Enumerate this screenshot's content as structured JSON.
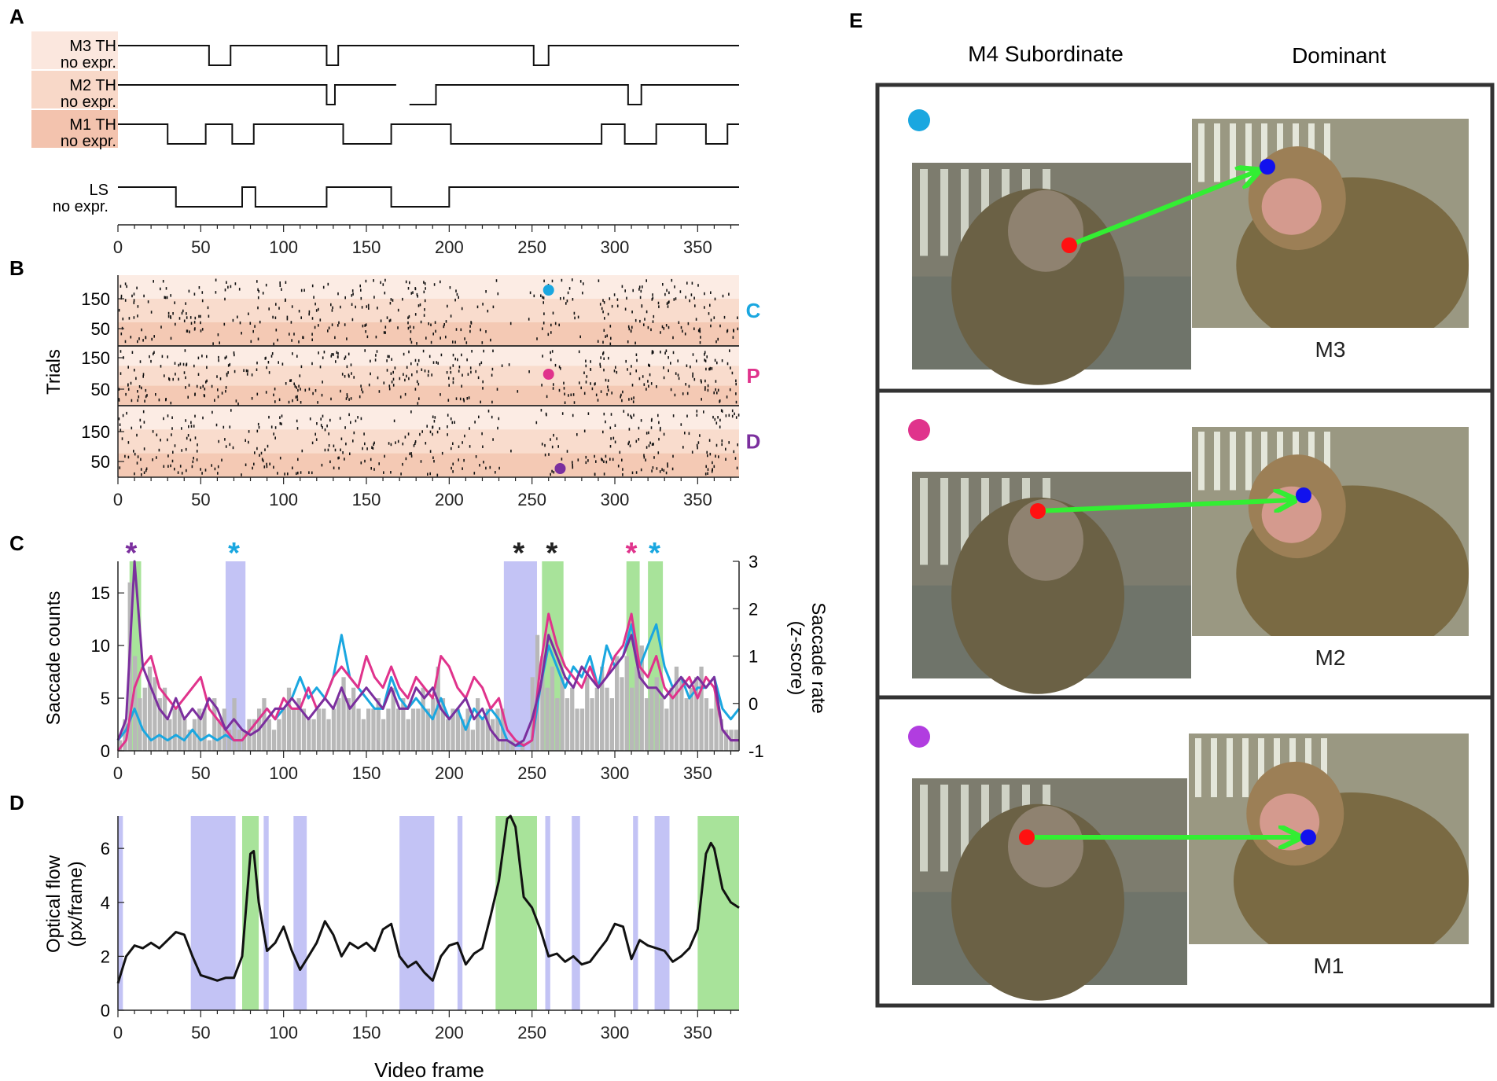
{
  "panel_letters": {
    "a": "A",
    "b": "B",
    "c": "C",
    "d": "D",
    "e": "E"
  },
  "colors": {
    "cyan": "#1aa7e0",
    "magenta": "#e0338c",
    "purple": "#7b2f9e",
    "green_band": "#a8e39a",
    "blue_band": "#c3c3f5",
    "hist_grey": "#b8b8b8",
    "arrow_green": "#33ee33",
    "red_dot": "#ff1111",
    "blue_dot": "#1111ee",
    "trace_black": "#111111"
  },
  "chart_data": [
    {
      "id": "A",
      "type": "line",
      "title": "",
      "xlabel": "",
      "ylabel": "",
      "xlim": [
        0,
        375
      ],
      "xticks": [
        0,
        50,
        100,
        150,
        200,
        250,
        300,
        350
      ],
      "rows": [
        {
          "name": "M3",
          "label_top": "M3 TH",
          "label_bottom": "no expr.",
          "low_segments": [
            [
              55,
              68
            ],
            [
              126,
              133
            ],
            [
              251,
              260
            ]
          ],
          "gaps": []
        },
        {
          "name": "M2",
          "label_top": "M2 TH",
          "label_bottom": "no expr.",
          "low_segments": [
            [
              126,
              131
            ],
            [
              176,
              192
            ],
            [
              308,
              316
            ]
          ],
          "gaps": [
            [
              168,
              176
            ]
          ]
        },
        {
          "name": "M1",
          "label_top": "M1 TH",
          "label_bottom": "no expr.",
          "low_segments": [
            [
              30,
              53
            ],
            [
              69,
              82
            ],
            [
              136,
              165
            ],
            [
              201,
              292
            ],
            [
              306,
              325
            ],
            [
              355,
              368
            ]
          ],
          "gaps": []
        },
        {
          "name": "LS",
          "label_top": "LS",
          "label_bottom": "no expr.",
          "low_segments": [
            [
              35,
              75
            ],
            [
              83,
              126
            ],
            [
              165,
              200
            ]
          ],
          "gaps": []
        }
      ]
    },
    {
      "id": "B",
      "type": "scatter",
      "ylabel": "Trials",
      "xlim": [
        0,
        375
      ],
      "xticks": [
        0,
        50,
        100,
        150,
        200,
        250,
        300,
        350
      ],
      "blocks": [
        {
          "label": "C",
          "color": "#1aa7e0",
          "yticks": [
            150,
            50
          ],
          "marker_frame": 260
        },
        {
          "label": "P",
          "color": "#e0338c",
          "yticks": [
            150,
            50
          ],
          "marker_frame": 260
        },
        {
          "label": "D",
          "color": "#7b2f9e",
          "yticks": [
            150,
            50
          ],
          "marker_frame": 267
        }
      ]
    },
    {
      "id": "C",
      "type": "line",
      "ylabel": "Saccade counts",
      "ylabel_right_line1": "Saccade rate",
      "ylabel_right_line2": "(z-score)",
      "xlim": [
        0,
        375
      ],
      "ylim": [
        0,
        18
      ],
      "ylim_right": [
        -1,
        3
      ],
      "xticks": [
        0,
        50,
        100,
        150,
        200,
        250,
        300,
        350
      ],
      "yticks": [
        0,
        5,
        10,
        15
      ],
      "yticks_right": [
        -1,
        0,
        1,
        2,
        3
      ],
      "green_bands": [
        [
          7,
          14
        ],
        [
          256,
          269
        ],
        [
          307,
          315
        ],
        [
          320,
          329
        ]
      ],
      "blue_bands": [
        [
          65,
          77
        ],
        [
          233,
          253
        ]
      ],
      "stars": [
        {
          "frame": 8,
          "text": "*",
          "color": "#7b2f9e"
        },
        {
          "frame": 70,
          "text": "*",
          "color": "#1aa7e0"
        },
        {
          "frame": 242,
          "text": "*",
          "color": "#222222"
        },
        {
          "frame": 262,
          "text": "*",
          "color": "#222222"
        },
        {
          "frame": 310,
          "text": "*",
          "color": "#e0338c"
        },
        {
          "frame": 324,
          "text": "*",
          "color": "#1aa7e0"
        }
      ],
      "series": [
        {
          "name": "C",
          "color": "#1aa7e0",
          "x": [
            0,
            5,
            10,
            15,
            20,
            25,
            30,
            35,
            40,
            45,
            50,
            55,
            60,
            65,
            70,
            75,
            80,
            85,
            90,
            95,
            100,
            105,
            110,
            115,
            120,
            125,
            130,
            135,
            140,
            145,
            150,
            155,
            160,
            165,
            170,
            175,
            180,
            185,
            190,
            195,
            200,
            205,
            210,
            215,
            220,
            225,
            230,
            235,
            240,
            245,
            250,
            255,
            260,
            265,
            270,
            275,
            280,
            285,
            290,
            295,
            300,
            305,
            310,
            315,
            320,
            325,
            330,
            335,
            340,
            345,
            350,
            355,
            360,
            365,
            370,
            375
          ],
          "y": [
            1,
            2,
            4,
            2,
            1,
            1.5,
            1,
            1.5,
            1,
            2,
            1,
            1.5,
            1,
            1.5,
            1,
            1,
            2,
            3,
            4,
            3,
            4,
            5,
            7,
            5,
            6,
            5,
            7,
            11,
            7,
            6,
            5,
            4,
            4,
            7,
            5,
            4,
            5,
            4,
            3,
            5,
            3,
            4,
            2,
            4,
            3,
            4,
            3,
            1,
            0.5,
            0.5,
            1,
            6,
            10,
            8,
            6,
            8,
            7,
            9,
            6,
            10,
            8,
            9,
            12,
            8,
            10,
            12,
            8,
            6,
            7,
            5,
            6,
            6,
            7,
            4,
            3,
            4
          ]
        },
        {
          "name": "P",
          "color": "#e0338c",
          "x": [
            0,
            5,
            10,
            15,
            20,
            25,
            30,
            35,
            40,
            45,
            50,
            55,
            60,
            65,
            70,
            75,
            80,
            85,
            90,
            95,
            100,
            105,
            110,
            115,
            120,
            125,
            130,
            135,
            140,
            145,
            150,
            155,
            160,
            165,
            170,
            175,
            180,
            185,
            190,
            195,
            200,
            205,
            210,
            215,
            220,
            225,
            230,
            235,
            240,
            245,
            250,
            255,
            260,
            265,
            270,
            275,
            280,
            285,
            290,
            295,
            300,
            305,
            310,
            315,
            320,
            325,
            330,
            335,
            340,
            345,
            350,
            355,
            360,
            365,
            370,
            375
          ],
          "y": [
            0,
            1,
            6,
            8,
            9,
            6,
            5,
            4,
            5,
            6,
            7,
            4,
            3,
            2,
            1,
            1,
            2,
            3,
            4,
            3,
            5,
            4,
            4,
            6,
            4,
            5,
            7,
            8,
            7,
            6,
            9,
            7,
            6,
            8,
            6,
            5,
            7,
            6,
            5,
            9,
            8,
            6,
            5,
            7,
            6,
            4,
            5,
            2,
            1,
            0.5,
            1,
            8,
            13,
            10,
            8,
            7,
            6,
            8,
            6,
            7,
            9,
            10,
            13,
            8,
            7,
            9,
            6,
            5,
            6,
            7,
            5,
            7,
            6,
            2,
            1,
            1
          ]
        },
        {
          "name": "D",
          "color": "#7b2f9e",
          "x": [
            0,
            5,
            10,
            15,
            20,
            25,
            30,
            35,
            40,
            45,
            50,
            55,
            60,
            65,
            70,
            75,
            80,
            85,
            90,
            95,
            100,
            105,
            110,
            115,
            120,
            125,
            130,
            135,
            140,
            145,
            150,
            155,
            160,
            165,
            170,
            175,
            180,
            185,
            190,
            195,
            200,
            205,
            210,
            215,
            220,
            225,
            230,
            235,
            240,
            245,
            250,
            255,
            260,
            265,
            270,
            275,
            280,
            285,
            290,
            295,
            300,
            305,
            310,
            315,
            320,
            325,
            330,
            335,
            340,
            345,
            350,
            355,
            360,
            365,
            370,
            375
          ],
          "y": [
            1,
            3,
            18,
            8,
            6,
            4,
            3,
            5,
            3,
            4,
            3,
            5,
            4,
            2,
            3,
            2,
            1.5,
            2,
            3,
            4,
            4,
            5,
            4,
            3,
            4,
            5,
            4,
            6,
            4,
            5,
            6,
            5,
            4,
            6,
            4,
            4,
            6,
            5,
            6,
            4,
            3,
            4,
            5,
            3,
            4,
            2,
            1,
            1,
            0.5,
            1,
            3,
            6,
            11,
            9,
            7,
            6,
            8,
            7,
            6,
            7,
            8,
            9,
            11,
            7,
            6,
            6,
            5,
            6,
            7,
            6,
            7,
            6,
            7,
            2,
            1,
            1
          ]
        }
      ],
      "histogram": {
        "name": "Saccade counts",
        "color": "#b8b8b8",
        "bin_start": 0,
        "bin_width": 3,
        "counts": [
          1,
          3,
          16,
          9,
          5,
          6,
          8,
          7,
          5,
          6,
          3,
          4,
          4,
          3,
          2,
          3,
          4,
          4,
          1,
          5,
          3,
          4,
          2,
          5,
          2,
          2,
          3,
          3,
          4,
          5,
          3,
          2,
          3,
          4,
          6,
          4,
          5,
          4,
          3,
          3,
          4,
          4,
          3,
          4,
          5,
          7,
          5,
          6,
          4,
          3,
          4,
          4,
          5,
          3,
          4,
          6,
          4,
          5,
          3,
          4,
          4,
          6,
          4,
          5,
          8,
          5,
          3,
          4,
          4,
          3,
          4,
          2,
          5,
          3,
          4,
          3,
          4,
          4,
          1,
          1,
          0,
          1,
          0,
          7,
          11,
          9,
          6,
          8,
          5,
          7,
          5,
          6,
          4,
          4,
          7,
          5,
          6,
          8,
          6,
          5,
          9,
          7,
          9,
          6,
          8,
          10,
          5,
          6,
          7,
          5,
          4,
          6,
          8,
          7,
          5,
          6,
          7,
          8,
          5,
          4,
          6,
          3,
          2,
          2,
          2
        ]
      }
    },
    {
      "id": "D",
      "type": "line",
      "xlabel": "Video frame",
      "ylabel_line1": "Optical flow",
      "ylabel_line2": "(px/frame)",
      "xlim": [
        0,
        375
      ],
      "ylim": [
        0,
        7.2
      ],
      "xticks": [
        0,
        50,
        100,
        150,
        200,
        250,
        300,
        350
      ],
      "yticks": [
        0,
        2,
        4,
        6
      ],
      "green_bands": [
        [
          75,
          85
        ],
        [
          228,
          253
        ],
        [
          350,
          375
        ]
      ],
      "blue_bands": [
        [
          0,
          3
        ],
        [
          44,
          71
        ],
        [
          88,
          91
        ],
        [
          106,
          114
        ],
        [
          170,
          191
        ],
        [
          205,
          208
        ],
        [
          258,
          261
        ],
        [
          274,
          279
        ],
        [
          311,
          314
        ],
        [
          324,
          333
        ]
      ],
      "series": [
        {
          "name": "Optical flow",
          "color": "#111111",
          "x": [
            0,
            5,
            10,
            15,
            20,
            25,
            30,
            35,
            40,
            45,
            50,
            55,
            60,
            65,
            70,
            75,
            80,
            82,
            85,
            90,
            95,
            100,
            105,
            110,
            115,
            120,
            125,
            130,
            135,
            140,
            145,
            150,
            155,
            160,
            165,
            170,
            175,
            180,
            185,
            190,
            195,
            200,
            205,
            210,
            215,
            220,
            225,
            230,
            235,
            237,
            240,
            245,
            250,
            255,
            260,
            265,
            270,
            275,
            280,
            285,
            290,
            295,
            300,
            305,
            310,
            315,
            320,
            325,
            330,
            335,
            340,
            345,
            350,
            355,
            358,
            360,
            365,
            370,
            375
          ],
          "y": [
            1,
            2,
            2.4,
            2.3,
            2.5,
            2.3,
            2.6,
            2.9,
            2.8,
            2,
            1.3,
            1.2,
            1.1,
            1.2,
            1.2,
            2,
            5.8,
            5.9,
            4,
            2.2,
            2.5,
            3.1,
            2.2,
            1.5,
            2,
            2.5,
            3.3,
            2.8,
            2,
            2.5,
            2.3,
            2.5,
            2.2,
            3,
            3.2,
            2,
            1.6,
            1.8,
            1.4,
            1.1,
            2,
            2.4,
            2.5,
            1.7,
            2.1,
            2.3,
            3.5,
            4.8,
            7.1,
            7.2,
            6.8,
            4.2,
            3.8,
            3,
            2,
            2.1,
            1.8,
            2,
            1.7,
            1.8,
            2.2,
            2.6,
            3.2,
            3.1,
            1.9,
            2.6,
            2.4,
            2.3,
            2.2,
            1.8,
            2,
            2.3,
            3,
            5.8,
            6.2,
            6,
            4.5,
            4,
            3.8
          ]
        }
      ]
    }
  ],
  "panel_e": {
    "header_left": "M4 Subordinate",
    "header_right": "Dominant",
    "rows": [
      {
        "marker_color": "#1aa7e0",
        "label": "M3",
        "row_name": "cyan"
      },
      {
        "marker_color": "#e0338c",
        "label": "M2",
        "row_name": "magenta"
      },
      {
        "marker_color": "#b13de0",
        "label": "M1",
        "row_name": "purple"
      }
    ]
  }
}
